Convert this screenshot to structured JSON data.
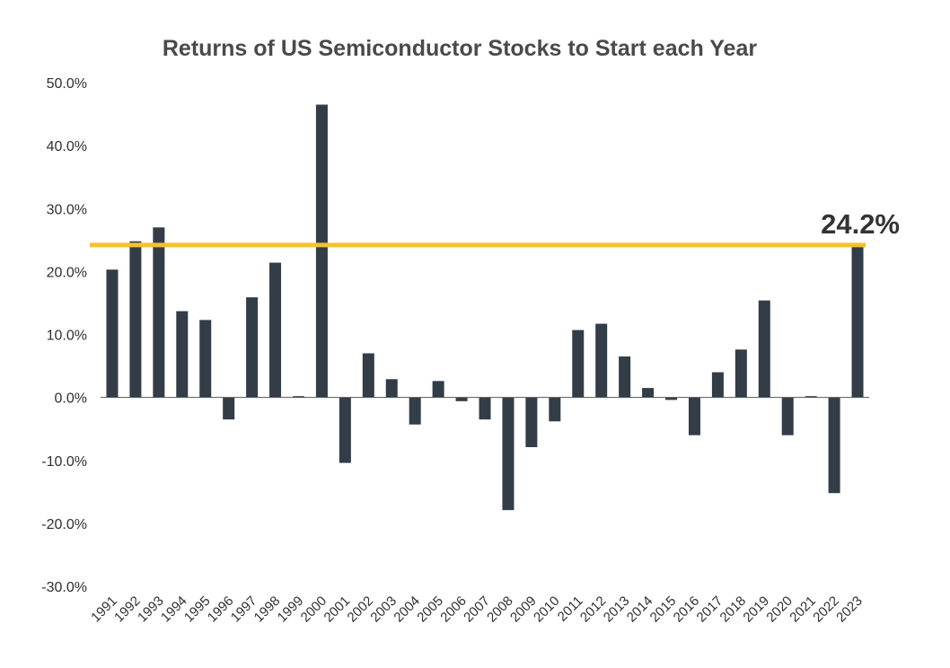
{
  "chart_data": {
    "type": "bar",
    "title": "Returns of US Semiconductor Stocks to Start each Year",
    "xlabel": "",
    "ylabel": "",
    "ylim": [
      -30,
      50
    ],
    "y_ticks": [
      50,
      40,
      30,
      20,
      10,
      0,
      -10,
      -20,
      -30
    ],
    "y_tick_labels": [
      "50.0%",
      "40.0%",
      "30.0%",
      "20.0%",
      "10.0%",
      "0.0%",
      "-10.0%",
      "-20.0%",
      "-30.0%"
    ],
    "grid": false,
    "legend": "none",
    "categories": [
      "1991",
      "1992",
      "1993",
      "1994",
      "1995",
      "1996",
      "1997",
      "1998",
      "1999",
      "2000",
      "2001",
      "2002",
      "2003",
      "2004",
      "2005",
      "2006",
      "2007",
      "2008",
      "2009",
      "2010",
      "2011",
      "2012",
      "2013",
      "2014",
      "2015",
      "2016",
      "2017",
      "2018",
      "2019",
      "2020",
      "2021",
      "2022",
      "2023"
    ],
    "values": [
      20.3,
      24.8,
      27.0,
      13.7,
      12.3,
      -3.5,
      15.9,
      21.4,
      0.2,
      46.5,
      -10.4,
      7.0,
      2.9,
      -4.3,
      2.6,
      -0.6,
      -3.5,
      -17.9,
      -7.9,
      -3.8,
      10.7,
      11.7,
      6.5,
      1.5,
      -0.4,
      -6.0,
      4.0,
      7.6,
      15.4,
      -6.0,
      0.2,
      -15.2,
      24.2
    ],
    "reference_line": {
      "value": 24.2,
      "label": "24.2%",
      "color": "#f5c12e"
    },
    "colors": {
      "bar": "#323d48",
      "axis": "#555555"
    }
  }
}
